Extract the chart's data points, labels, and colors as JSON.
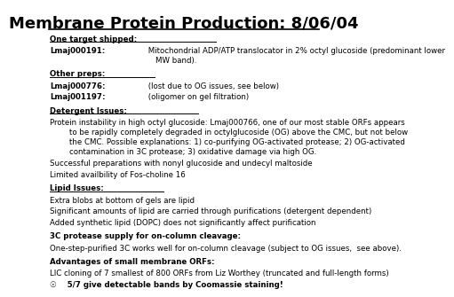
{
  "title": "Membrane Protein Production: 8/06/04",
  "background_color": "#ffffff",
  "text_color": "#000000",
  "title_fontsize": 13,
  "body_fontsize": 6.2,
  "sections": [
    {
      "header": "One target shipped:",
      "lines": [
        {
          "bold_prefix": "Lmaj000191:",
          "text": " Mitochondrial ADP/ATP translocator in 2% octyl glucoside (predominant lower\n    MW band)."
        }
      ]
    },
    {
      "header": "Other preps:",
      "lines": [
        {
          "bold_prefix": "Lmaj000776:",
          "text": " (lost due to OG issues, see below)"
        },
        {
          "bold_prefix": "Lmaj001197:",
          "text": " (oligomer on gel filtration)"
        }
      ]
    },
    {
      "header": "Detergent Issues:",
      "lines": [
        {
          "bold_prefix": "",
          "text": "Protein instability in high octyl glucoside: Lmaj000766, one of our most stable ORFs appears\n        to be rapidly completely degraded in octylglucoside (OG) above the CMC, but not below\n        the CMC. Possible explanations: 1) co-purifying OG-activated protease; 2) OG-activated\n        contamination in 3C protease; 3) oxidative damage via high OG."
        },
        {
          "bold_prefix": "",
          "text": "Successful preparations with nonyl glucoside and undecyl maltoside"
        },
        {
          "bold_prefix": "",
          "text": "Limited availbility of Fos-choline 16"
        }
      ]
    },
    {
      "header": "Lipid Issues:",
      "lines": [
        {
          "bold_prefix": "",
          "text": "Extra blobs at bottom of gels are lipid"
        },
        {
          "bold_prefix": "",
          "text": "Significant amounts of lipid are carried through purifications (detergent dependent)"
        },
        {
          "bold_prefix": "",
          "text": "Added synthetic lipid (DOPC) does not significantly affect purification"
        }
      ]
    },
    {
      "header": "3C protease supply for on-column cleavage:",
      "lines": [
        {
          "bold_prefix": "",
          "text": "One-step-purified 3C works well for on-column cleavage (subject to OG issues,  see above)."
        }
      ]
    },
    {
      "header": "Advantages of small membrane ORFs:",
      "lines": [
        {
          "bold_prefix": "",
          "text": "LIC cloning of 7 smallest of 800 ORFs from Liz Worthey (truncated and full-length forms)"
        },
        {
          "bold_prefix": "",
          "text": "☉    5/7 give detectable bands by Coomassie staining!",
          "bold_last": true
        }
      ]
    }
  ]
}
